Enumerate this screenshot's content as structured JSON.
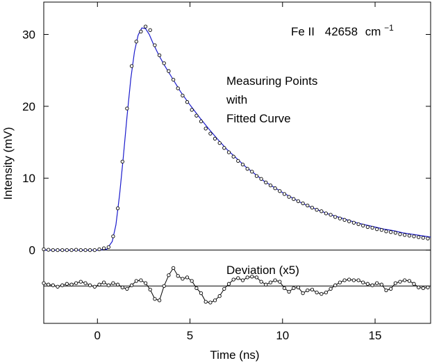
{
  "chart_data": {
    "type": "scatter",
    "title": "",
    "xlabel": "Time (ns)",
    "ylabel": "Intensity (mV)",
    "xlim": [
      -2.9,
      18
    ],
    "ylim": [
      -10.2,
      34.5
    ],
    "xticks": [
      0,
      5,
      10,
      15
    ],
    "yticks": [
      0,
      10,
      20,
      30
    ],
    "grid": false,
    "annotations": {
      "species": "Fe II",
      "energy": "42658",
      "unit_main": "cm",
      "unit_sup": "−1",
      "legend_line1": "Measuring Points",
      "legend_line2": "with",
      "legend_line3": "Fitted Curve",
      "deviation_label": "Deviation (x5)"
    },
    "baseline_y": 0,
    "deviation_baseline_y": -5.0,
    "colors": {
      "fit": "#1a1acc",
      "points": "#000000",
      "axes": "#000000"
    },
    "series": [
      {
        "name": "Measuring Points",
        "kind": "points",
        "x": [
          -2.9,
          -2.65,
          -2.4,
          -2.15,
          -1.9,
          -1.65,
          -1.4,
          -1.15,
          -0.9,
          -0.65,
          -0.4,
          -0.15,
          0.1,
          0.35,
          0.6,
          0.85,
          1.1,
          1.35,
          1.6,
          1.85,
          2.1,
          2.35,
          2.6,
          2.85,
          3.1,
          3.35,
          3.6,
          3.85,
          4.1,
          4.35,
          4.6,
          4.85,
          5.1,
          5.35,
          5.6,
          5.85,
          6.1,
          6.35,
          6.6,
          6.85,
          7.1,
          7.35,
          7.6,
          7.85,
          8.1,
          8.35,
          8.6,
          8.85,
          9.1,
          9.35,
          9.6,
          9.85,
          10.1,
          10.35,
          10.6,
          10.85,
          11.1,
          11.35,
          11.6,
          11.85,
          12.1,
          12.35,
          12.6,
          12.85,
          13.1,
          13.35,
          13.6,
          13.85,
          14.1,
          14.35,
          14.6,
          14.85,
          15.1,
          15.35,
          15.6,
          15.85,
          16.1,
          16.35,
          16.6,
          16.85,
          17.1,
          17.35,
          17.6,
          17.85
        ],
        "y": [
          0.1,
          0.05,
          0.0,
          0.0,
          0.0,
          0.0,
          0.0,
          0.05,
          0.0,
          0.0,
          0.0,
          0.0,
          0.1,
          0.25,
          0.4,
          1.9,
          5.8,
          12.3,
          19.7,
          25.6,
          29.0,
          30.4,
          31.1,
          30.6,
          28.5,
          27.1,
          26.0,
          24.9,
          23.7,
          22.5,
          21.5,
          20.6,
          19.5,
          18.7,
          17.9,
          16.9,
          16.2,
          15.5,
          14.9,
          14.2,
          13.6,
          13.0,
          12.4,
          11.9,
          11.3,
          10.9,
          10.3,
          9.9,
          9.4,
          9.0,
          8.6,
          8.2,
          7.8,
          7.4,
          7.1,
          6.8,
          6.5,
          6.2,
          5.9,
          5.6,
          5.4,
          5.1,
          4.9,
          4.6,
          4.4,
          4.2,
          4.0,
          3.8,
          3.6,
          3.4,
          3.2,
          3.1,
          2.9,
          2.8,
          2.6,
          2.5,
          2.4,
          2.2,
          2.1,
          2.0,
          1.9,
          1.8,
          1.7,
          1.6
        ]
      },
      {
        "name": "Fitted Curve",
        "kind": "line",
        "x": [
          -2.9,
          -1.0,
          0.0,
          0.5,
          0.8,
          1.0,
          1.2,
          1.4,
          1.6,
          1.8,
          2.0,
          2.2,
          2.4,
          2.6,
          2.8,
          3.0,
          3.3,
          3.6,
          4.0,
          4.5,
          5.0,
          5.5,
          6.0,
          6.5,
          7.0,
          7.5,
          8.0,
          8.5,
          9.0,
          9.5,
          10.0,
          10.5,
          11.0,
          11.5,
          12.0,
          12.5,
          13.0,
          13.5,
          14.0,
          14.5,
          15.0,
          15.5,
          16.0,
          16.5,
          17.0,
          17.5,
          18.0
        ],
        "y": [
          0.0,
          0.0,
          0.0,
          0.1,
          1.2,
          3.5,
          7.8,
          13.0,
          18.6,
          23.8,
          27.6,
          29.9,
          30.9,
          30.8,
          30.0,
          28.8,
          27.2,
          25.8,
          24.1,
          22.0,
          20.2,
          18.5,
          16.9,
          15.4,
          14.0,
          12.8,
          11.6,
          10.6,
          9.6,
          8.8,
          8.0,
          7.3,
          6.6,
          6.0,
          5.5,
          5.0,
          4.6,
          4.2,
          3.8,
          3.5,
          3.2,
          2.9,
          2.7,
          2.4,
          2.2,
          2.0,
          1.8
        ]
      },
      {
        "name": "Deviation (x5)",
        "kind": "deviation",
        "x": [
          -2.9,
          -2.65,
          -2.4,
          -2.15,
          -1.9,
          -1.65,
          -1.4,
          -1.15,
          -0.9,
          -0.65,
          -0.4,
          -0.15,
          0.1,
          0.35,
          0.6,
          0.85,
          1.1,
          1.35,
          1.6,
          1.85,
          2.1,
          2.35,
          2.6,
          2.85,
          3.1,
          3.35,
          3.6,
          3.85,
          4.1,
          4.35,
          4.6,
          4.85,
          5.1,
          5.35,
          5.6,
          5.85,
          6.1,
          6.35,
          6.6,
          6.85,
          7.1,
          7.35,
          7.6,
          7.85,
          8.1,
          8.35,
          8.6,
          8.85,
          9.1,
          9.35,
          9.6,
          9.85,
          10.1,
          10.35,
          10.6,
          10.85,
          11.1,
          11.35,
          11.6,
          11.85,
          12.1,
          12.35,
          12.6,
          12.85,
          13.1,
          13.35,
          13.6,
          13.85,
          14.1,
          14.35,
          14.6,
          14.85,
          15.1,
          15.35,
          15.6,
          15.85,
          16.1,
          16.35,
          16.6,
          16.85,
          17.1,
          17.35,
          17.6,
          17.85
        ],
        "y": [
          -4.6,
          -4.8,
          -4.9,
          -5.1,
          -4.9,
          -4.7,
          -4.8,
          -4.6,
          -4.4,
          -4.6,
          -4.9,
          -5.1,
          -4.8,
          -4.5,
          -4.9,
          -4.6,
          -4.8,
          -5.2,
          -5.4,
          -4.9,
          -4.3,
          -4.2,
          -4.6,
          -5.5,
          -6.8,
          -7.0,
          -5.0,
          -3.5,
          -2.5,
          -3.6,
          -4.0,
          -3.8,
          -4.3,
          -5.3,
          -6.0,
          -7.2,
          -7.3,
          -7.0,
          -6.4,
          -5.4,
          -4.7,
          -4.1,
          -3.9,
          -4.2,
          -3.8,
          -3.7,
          -3.8,
          -4.4,
          -4.8,
          -4.5,
          -4.2,
          -4.4,
          -5.3,
          -5.8,
          -5.3,
          -5.2,
          -6.0,
          -5.6,
          -5.5,
          -5.9,
          -6.1,
          -5.9,
          -5.4,
          -4.9,
          -4.5,
          -4.2,
          -4.1,
          -4.2,
          -4.2,
          -4.5,
          -4.7,
          -4.9,
          -4.6,
          -4.8,
          -5.6,
          -5.4,
          -4.6,
          -4.4,
          -4.2,
          -4.3,
          -4.7,
          -5.2,
          -5.3,
          -5.2
        ]
      }
    ]
  }
}
